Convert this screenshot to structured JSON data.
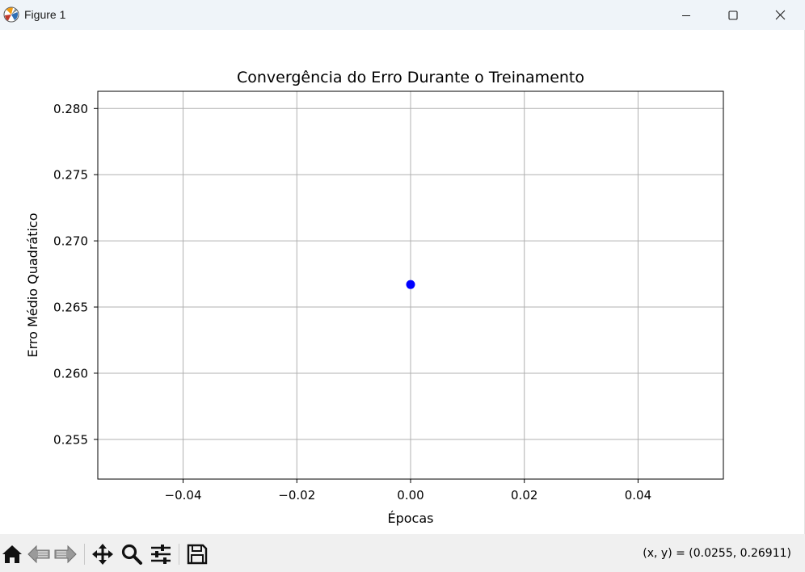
{
  "window": {
    "title": "Figure 1",
    "minimize_icon": "minimize-icon",
    "maximize_icon": "maximize-icon",
    "close_icon": "close-icon"
  },
  "toolbar": {
    "buttons": [
      "home-icon",
      "back-arrow-icon",
      "forward-arrow-icon",
      "pan-move-icon",
      "zoom-magnifier-icon",
      "configure-subplots-icon",
      "save-disk-icon"
    ],
    "coordinates": "(x, y) = (0.0255, 0.26911)"
  },
  "colors": {
    "point": "#0000ff",
    "grid": "#b0b0b0",
    "titlebar": "#eff4f9",
    "toolbar": "#f0f0f0"
  },
  "chart_data": {
    "type": "line",
    "title": "Convergência do Erro Durante o Treinamento",
    "xlabel": "Épocas",
    "ylabel": "Erro Médio Quadrático",
    "series": [
      {
        "x": [
          0
        ],
        "values": [
          0.2667
        ],
        "marker": "o",
        "color": "#0000ff"
      }
    ],
    "xlim": [
      -0.055,
      0.055
    ],
    "ylim": [
      0.252,
      0.2813
    ],
    "xticks": [
      -0.04,
      -0.02,
      0.0,
      0.02,
      0.04
    ],
    "xtick_labels": [
      "−0.04",
      "−0.02",
      "0.00",
      "0.02",
      "0.04"
    ],
    "yticks": [
      0.255,
      0.26,
      0.265,
      0.27,
      0.275,
      0.28
    ],
    "ytick_labels": [
      "0.255",
      "0.260",
      "0.265",
      "0.270",
      "0.275",
      "0.280"
    ],
    "grid": true,
    "legend": "none"
  }
}
